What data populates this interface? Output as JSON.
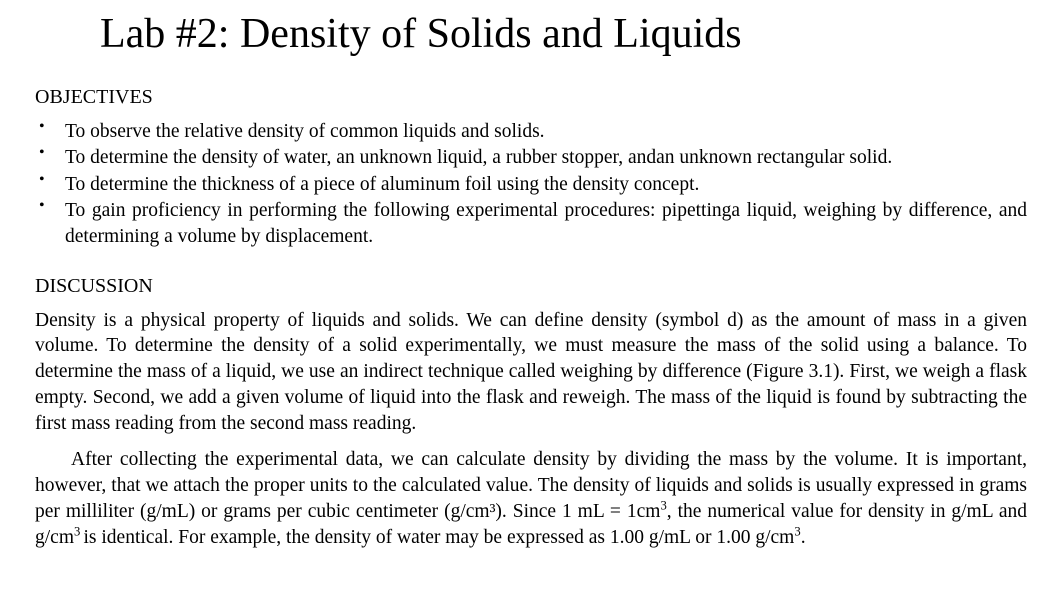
{
  "title": "Lab #2: Density of Solids and Liquids",
  "sections": {
    "objectives": {
      "heading": "OBJECTIVES",
      "items": [
        "To observe the relative density of common liquids and solids.",
        "To determine the density of water, an unknown liquid, a rubber stopper, andan unknown rectangular solid.",
        "To determine the thickness of a piece of aluminum foil using the density concept.",
        "To gain proficiency in performing the following experimental procedures: pipettinga liquid, weighing by difference, and determining a volume by displacement."
      ]
    },
    "discussion": {
      "heading": "DISCUSSION",
      "p1_a": "Density is a physical property of liquids and solids. We can define ",
      "p1_b": "density ",
      "p1_c": " (symbol d) as the amount of mass in a given volume. To determine the density of a solid experimentally, we must measure the mass of the solid using a balance. To determine the mass of a liquid, we use an indirect technique called ",
      "p1_d": "weighing by difference ",
      "p1_e": " (Figure 3.1). First, we weigh a flask empty. Second, we add a given volume of liquid into the flask and reweigh. The mass of the liquid is found by subtracting the first mass reading from the second mass reading.",
      "p2_a": "After collecting the experimental data, we can calculate density by dividing the mass by the volume. It is important, however, that we attach the proper units to the calculated value. The density of liquids and solids is usually expressed in grams per milliliter (g/mL) or grams per cubic centimeter (g/cm³). Since 1 mL = 1cm",
      "p2_b": "3",
      "p2_c": ", the numerical value for density in g/mL and g/cm",
      "p2_d": "3 ",
      "p2_e": "is identical. For example, the density of water may be expressed as 1.00 g/mL or 1.00 g/cm",
      "p2_f": "3",
      "p2_g": "."
    }
  },
  "style": {
    "background_color": "#ffffff",
    "text_color": "#000000",
    "font_family": "Times New Roman",
    "title_fontsize": 42,
    "heading_fontsize": 20,
    "body_fontsize": 19.5
  }
}
